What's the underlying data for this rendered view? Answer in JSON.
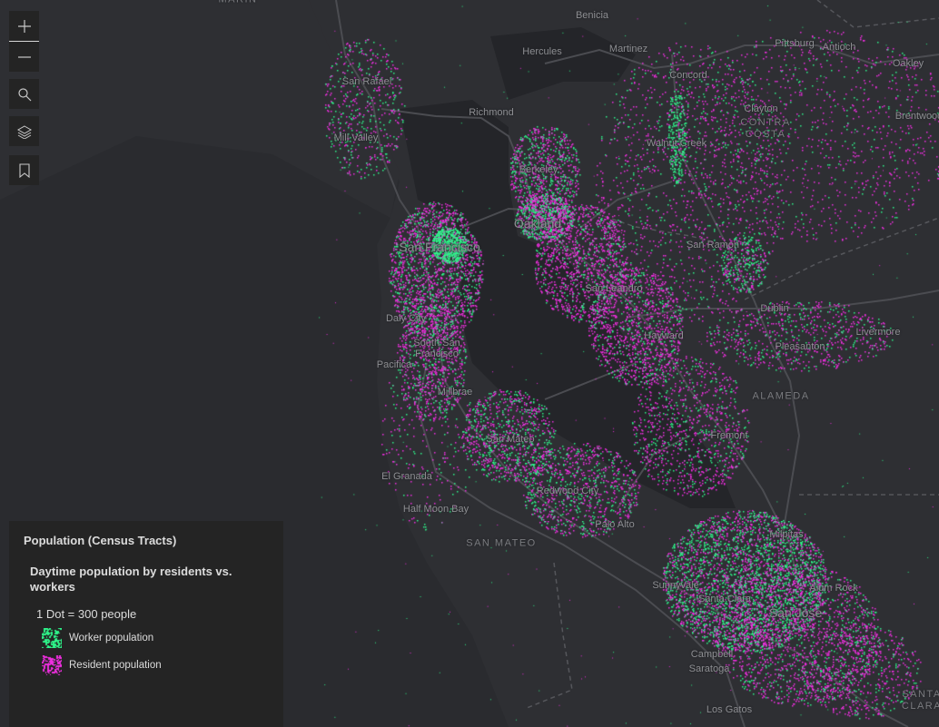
{
  "map": {
    "labels": [
      {
        "text": "MARIN",
        "type": "county"
      },
      {
        "text": "Benicia",
        "type": "city"
      },
      {
        "text": "Hercules",
        "type": "city"
      },
      {
        "text": "Martinez",
        "type": "city"
      },
      {
        "text": "Pittsburg",
        "type": "city"
      },
      {
        "text": "Antioch",
        "type": "city"
      },
      {
        "text": "Oakley",
        "type": "city"
      },
      {
        "text": "San Rafael",
        "type": "city"
      },
      {
        "text": "Concord",
        "type": "city"
      },
      {
        "text": "Richmond",
        "type": "city"
      },
      {
        "text": "Clayton",
        "type": "city"
      },
      {
        "text": "CONTRA\nCOSTA",
        "type": "county"
      },
      {
        "text": "Brentwood",
        "type": "city"
      },
      {
        "text": "Mill Valley",
        "type": "city"
      },
      {
        "text": "Walnut Creek",
        "type": "city"
      },
      {
        "text": "Berkeley",
        "type": "city"
      },
      {
        "text": "Oakland",
        "type": "major"
      },
      {
        "text": "San Francisco",
        "type": "major"
      },
      {
        "text": "San Ramon",
        "type": "city"
      },
      {
        "text": "San Leandro",
        "type": "city"
      },
      {
        "text": "Daly City",
        "type": "city"
      },
      {
        "text": "Dublin",
        "type": "city"
      },
      {
        "text": "Hayward",
        "type": "city"
      },
      {
        "text": "Livermore",
        "type": "city"
      },
      {
        "text": "Pleasanton",
        "type": "city"
      },
      {
        "text": "South San\nFrancisco",
        "type": "city"
      },
      {
        "text": "Pacifica",
        "type": "city"
      },
      {
        "text": "Millbrae",
        "type": "city"
      },
      {
        "text": "ALAMEDA",
        "type": "county"
      },
      {
        "text": "San Mateo",
        "type": "city"
      },
      {
        "text": "Fremont",
        "type": "city"
      },
      {
        "text": "El Granada",
        "type": "city"
      },
      {
        "text": "Redwood City",
        "type": "city"
      },
      {
        "text": "Half Moon Bay",
        "type": "city"
      },
      {
        "text": "Palo Alto",
        "type": "city"
      },
      {
        "text": "SAN MATEO",
        "type": "county"
      },
      {
        "text": "Milpitas",
        "type": "city"
      },
      {
        "text": "Sunnyvale",
        "type": "city"
      },
      {
        "text": "Alum Rock",
        "type": "city"
      },
      {
        "text": "Santa Clara",
        "type": "city"
      },
      {
        "text": "San Jose",
        "type": "major"
      },
      {
        "text": "Campbell",
        "type": "city"
      },
      {
        "text": "Saratoga",
        "type": "city"
      },
      {
        "text": "SANTA\nCLARA",
        "type": "county"
      },
      {
        "text": "Los Gatos",
        "type": "city"
      }
    ],
    "colors": {
      "worker": "#2ef58a",
      "resident": "#f02ee0",
      "land": "#2d2e32",
      "water": "#242529",
      "road": "#4b4c51"
    }
  },
  "controls": {
    "zoom_in": "zoom-in-icon",
    "zoom_out": "zoom-out-icon",
    "search": "search-icon",
    "layers": "layers-icon",
    "bookmarks": "bookmark-icon"
  },
  "legend": {
    "layer_title": "Population (Census Tracts)",
    "renderer_title": "Daytime population by residents vs. workers",
    "dot_value": "1 Dot = 300 people",
    "items": [
      {
        "label": "Worker population",
        "color": "#2ef58a"
      },
      {
        "label": "Resident population",
        "color": "#f02ee0"
      }
    ]
  }
}
